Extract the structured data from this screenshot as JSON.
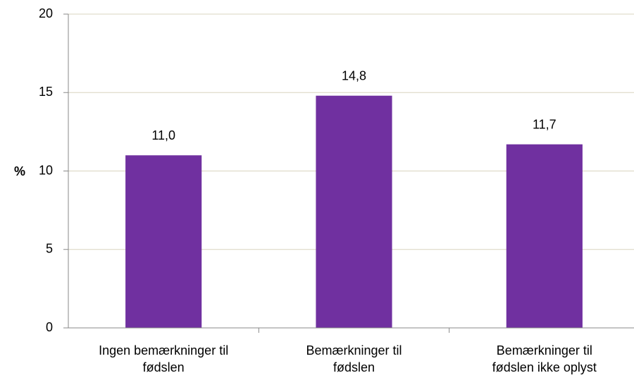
{
  "chart_data": {
    "type": "bar",
    "categories": [
      "Ingen bemærkninger til fødslen",
      "Bemærkninger til fødslen",
      "Bemærkninger til fødslen ikke oplyst"
    ],
    "values": [
      11.0,
      14.8,
      11.7
    ],
    "value_labels": [
      "11,0",
      "14,8",
      "11,7"
    ],
    "color": "#7030a0",
    "y_label": "%",
    "ylim": [
      0,
      20
    ],
    "yticks": [
      0,
      5,
      10,
      15,
      20
    ],
    "grid": true
  }
}
